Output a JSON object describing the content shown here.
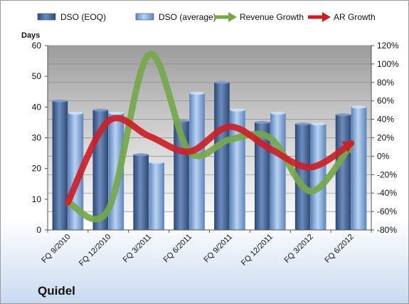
{
  "company": "Quidel",
  "chart_data": {
    "type": "bar+line",
    "categories": [
      "FQ 9/2010",
      "FQ 12/2010",
      "FQ 3/2011",
      "FQ 6/2011",
      "FQ 9/2011",
      "FQ 12/2011",
      "FQ 3/2012",
      "FQ 6/2012"
    ],
    "y_left_label": "Days",
    "y_left_lim": [
      0,
      60
    ],
    "y_left_ticks": [
      "0",
      "10",
      "20",
      "30",
      "40",
      "50",
      "60"
    ],
    "y_right_lim": [
      -80,
      120
    ],
    "y_right_ticks": [
      "-80%",
      "-60%",
      "-40%",
      "-20%",
      "0%",
      "20%",
      "40%",
      "60%",
      "80%",
      "100%",
      "120%"
    ],
    "legend_position": "top",
    "series": [
      {
        "name": "DSO (EOQ)",
        "kind": "bar",
        "axis": "left",
        "color": "#4a6a9a",
        "values": [
          42,
          39,
          24.5,
          35.5,
          48,
          35,
          34.5,
          37.5
        ]
      },
      {
        "name": "DSO (average)",
        "kind": "bar",
        "axis": "left",
        "color": "#8fb2de",
        "values": [
          38,
          38,
          22,
          44.5,
          39,
          38,
          34.5,
          40
        ]
      },
      {
        "name": "Revenue Growth",
        "kind": "line",
        "axis": "right",
        "color": "#76a84a",
        "values": [
          -50,
          -58,
          110,
          5,
          18,
          20,
          -38,
          13
        ]
      },
      {
        "name": "AR Growth",
        "kind": "line",
        "axis": "right",
        "color": "#cc1f26",
        "values": [
          -50,
          38,
          22,
          5,
          32,
          8,
          -12,
          14
        ]
      }
    ]
  }
}
